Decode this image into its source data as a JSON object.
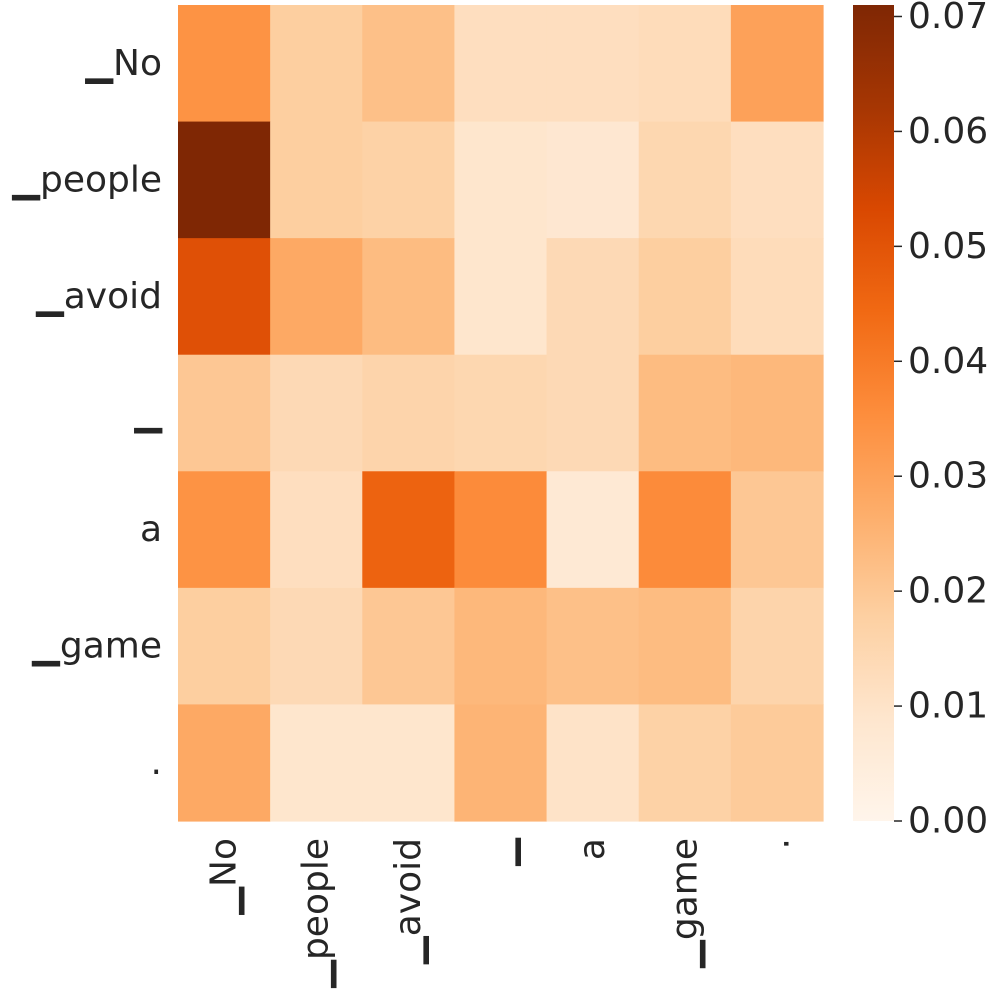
{
  "chart_data": {
    "type": "heatmap",
    "title": "",
    "xlabel": "",
    "ylabel": "",
    "x_tokens": [
      "▁No",
      "▁people",
      "▁avoid",
      "▁",
      "a",
      "▁game",
      "."
    ],
    "y_tokens": [
      "▁No",
      "▁people",
      "▁avoid",
      "▁",
      "a",
      "▁game",
      "."
    ],
    "values": [
      [
        0.034,
        0.018,
        0.022,
        0.012,
        0.012,
        0.013,
        0.03
      ],
      [
        0.071,
        0.018,
        0.017,
        0.009,
        0.008,
        0.015,
        0.012
      ],
      [
        0.051,
        0.028,
        0.023,
        0.009,
        0.014,
        0.018,
        0.013
      ],
      [
        0.02,
        0.014,
        0.016,
        0.015,
        0.014,
        0.023,
        0.024
      ],
      [
        0.034,
        0.012,
        0.046,
        0.036,
        0.007,
        0.036,
        0.02
      ],
      [
        0.018,
        0.014,
        0.02,
        0.024,
        0.022,
        0.023,
        0.016
      ],
      [
        0.028,
        0.009,
        0.009,
        0.025,
        0.01,
        0.017,
        0.019
      ]
    ],
    "colorbar": {
      "min": 0.0,
      "max": 0.071,
      "ticks": [
        0.0,
        0.01,
        0.02,
        0.03,
        0.04,
        0.05,
        0.06,
        0.07
      ],
      "tick_labels": [
        "0.00",
        "0.01",
        "0.02",
        "0.03",
        "0.04",
        "0.05",
        "0.06",
        "0.07"
      ],
      "colormap": "Oranges"
    }
  }
}
